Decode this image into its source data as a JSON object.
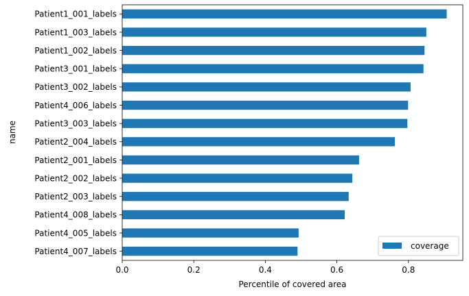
{
  "chart_data": {
    "type": "bar",
    "orientation": "horizontal",
    "categories": [
      "Patient1_001_labels",
      "Patient1_003_labels",
      "Patient1_002_labels",
      "Patient3_001_labels",
      "Patient3_002_labels",
      "Patient4_006_labels",
      "Patient3_003_labels",
      "Patient2_004_labels",
      "Patient2_001_labels",
      "Patient2_002_labels",
      "Patient2_003_labels",
      "Patient4_008_labels",
      "Patient4_005_labels",
      "Patient4_007_labels"
    ],
    "series": [
      {
        "name": "coverage",
        "color": "#1f77b4",
        "values": [
          0.907,
          0.85,
          0.845,
          0.842,
          0.806,
          0.799,
          0.797,
          0.762,
          0.662,
          0.643,
          0.633,
          0.622,
          0.493,
          0.49
        ]
      }
    ],
    "title": "",
    "xlabel": "Percentile of covered area",
    "ylabel": "name",
    "xlim": [
      0,
      0.952
    ],
    "xticks": [
      0.0,
      0.2,
      0.4,
      0.6,
      0.8
    ],
    "xtick_labels": [
      "0.0",
      "0.2",
      "0.4",
      "0.6",
      "0.8"
    ],
    "grid": false,
    "legend": {
      "position": "lower-right",
      "entries": [
        "coverage"
      ]
    }
  }
}
